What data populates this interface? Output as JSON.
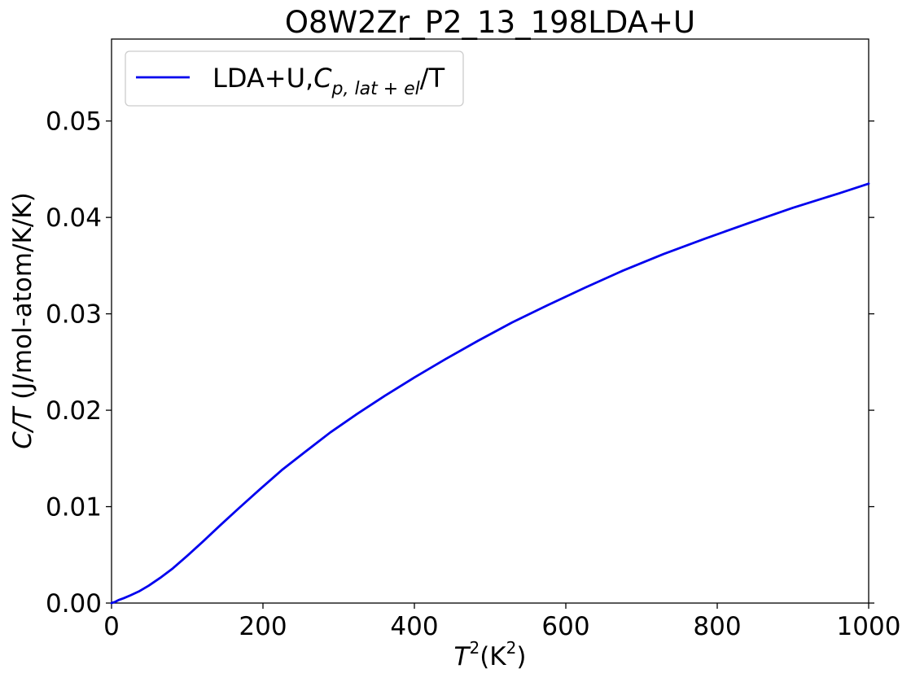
{
  "chart_data": {
    "type": "line",
    "title": "O8W2Zr_P2_13_198LDA+U",
    "xlabel": {
      "base": "T",
      "sup": "2",
      "unit_open": "(K",
      "unit_sup": "2",
      "unit_close": ")"
    },
    "ylabel": {
      "italic": "C/T",
      "rest": " (J/mol-atom/K/K)"
    },
    "xlim": [
      0,
      1000
    ],
    "ylim": [
      0,
      0.0585
    ],
    "x_ticks": [
      {
        "value": 0,
        "label": "0"
      },
      {
        "value": 200,
        "label": "200"
      },
      {
        "value": 400,
        "label": "400"
      },
      {
        "value": 600,
        "label": "600"
      },
      {
        "value": 800,
        "label": "800"
      },
      {
        "value": 1000,
        "label": "1000"
      }
    ],
    "y_ticks": [
      {
        "value": 0.0,
        "label": "0.00"
      },
      {
        "value": 0.01,
        "label": "0.01"
      },
      {
        "value": 0.02,
        "label": "0.02"
      },
      {
        "value": 0.03,
        "label": "0.03"
      },
      {
        "value": 0.04,
        "label": "0.04"
      },
      {
        "value": 0.05,
        "label": "0.05"
      }
    ],
    "grid": false,
    "legend": {
      "placement": "top-left",
      "entries": [
        {
          "prefix": "LDA+U,",
          "math_base": "C",
          "math_sub": "p, lat + el",
          "suffix": "/T"
        }
      ]
    },
    "series": [
      {
        "color": "#0000ee",
        "x": [
          0,
          1,
          4,
          9,
          16,
          25,
          36,
          49,
          64,
          81,
          100,
          121,
          144,
          169,
          196,
          225,
          256,
          289,
          324,
          361,
          400,
          441,
          484,
          529,
          576,
          625,
          676,
          729,
          784,
          841,
          900,
          961,
          1000
        ],
        "y": [
          0,
          3e-05,
          0.0001,
          0.0003,
          0.0005,
          0.0008,
          0.0012,
          0.0018,
          0.0026,
          0.0036,
          0.0049,
          0.0064,
          0.0081,
          0.0099,
          0.0118,
          0.0138,
          0.0157,
          0.0177,
          0.0196,
          0.0215,
          0.0234,
          0.0253,
          0.0272,
          0.0291,
          0.0309,
          0.0327,
          0.0345,
          0.0362,
          0.0378,
          0.0394,
          0.041,
          0.0425,
          0.0435
        ]
      }
    ]
  }
}
